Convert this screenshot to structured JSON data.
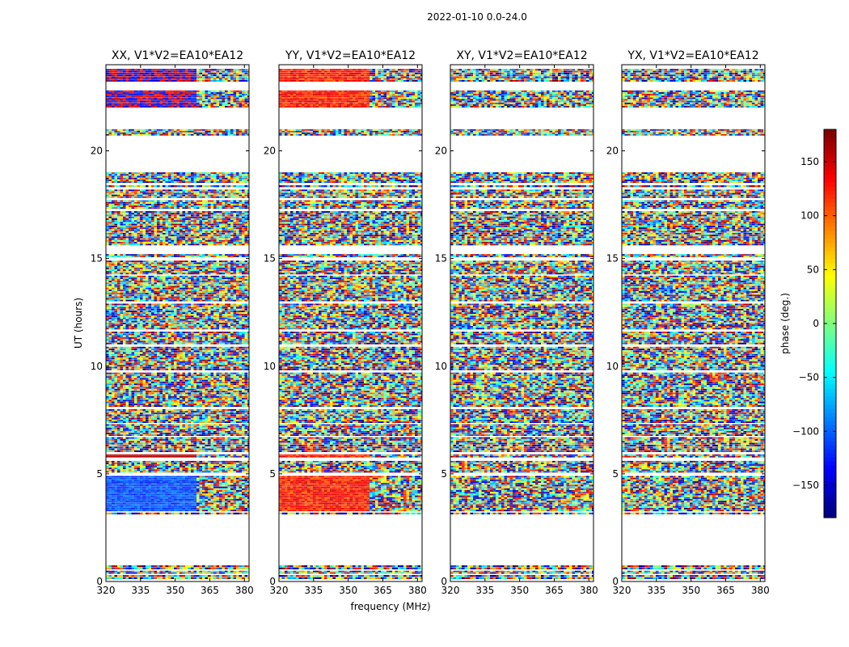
{
  "figure_title": "2022-01-10 0.0-24.0",
  "chart_data": [
    {
      "type": "heatmap",
      "title": "XX, V1*V2=EA10*EA12",
      "xlabel": "",
      "ylabel": "UT (hours)",
      "xlim": [
        320,
        382
      ],
      "ylim": [
        0,
        24
      ],
      "xticks": [
        320,
        335,
        350,
        365,
        380
      ],
      "yticks": [
        0,
        5,
        10,
        15,
        20
      ],
      "value": "phase (deg.)"
    },
    {
      "type": "heatmap",
      "title": "YY, V1*V2=EA10*EA12",
      "xlabel": "frequency (MHz)",
      "ylabel": "",
      "xlim": [
        320,
        382
      ],
      "ylim": [
        0,
        24
      ],
      "xticks": [
        320,
        335,
        350,
        365,
        380
      ],
      "yticks": [
        0,
        5,
        10,
        15,
        20
      ],
      "value": "phase (deg.)"
    },
    {
      "type": "heatmap",
      "title": "XY, V1*V2=EA10*EA12",
      "xlabel": "",
      "ylabel": "",
      "xlim": [
        320,
        382
      ],
      "ylim": [
        0,
        24
      ],
      "xticks": [
        320,
        335,
        350,
        365,
        380
      ],
      "yticks": [
        0,
        5,
        10,
        15,
        20
      ],
      "value": "phase (deg.)"
    },
    {
      "type": "heatmap",
      "title": "YX, V1*V2=EA10*EA12",
      "xlabel": "",
      "ylabel": "",
      "xlim": [
        320,
        382
      ],
      "ylim": [
        0,
        24
      ],
      "xticks": [
        320,
        335,
        350,
        365,
        380
      ],
      "yticks": [
        0,
        5,
        10,
        15,
        20
      ],
      "value": "phase (deg.)"
    }
  ],
  "colorbar": {
    "label": "phase (deg.)",
    "range": [
      -180,
      180
    ],
    "ticks": [
      -150,
      -100,
      -50,
      0,
      50,
      100,
      150
    ],
    "colormap": "jet",
    "colors": [
      "#00007f",
      "#0000ff",
      "#007fff",
      "#00ffff",
      "#7fff7f",
      "#ffff00",
      "#ff7f00",
      "#ff0000",
      "#7f0000"
    ]
  },
  "data_bands": [
    [
      0.1,
      0.3
    ],
    [
      0.35,
      0.5
    ],
    [
      0.55,
      0.75
    ],
    [
      3.1,
      3.2
    ],
    [
      3.25,
      4.9
    ],
    [
      5.05,
      5.6
    ],
    [
      5.75,
      5.9
    ],
    [
      6.0,
      6.7
    ],
    [
      6.75,
      7.3
    ],
    [
      7.35,
      8.0
    ],
    [
      8.1,
      9.7
    ],
    [
      9.8,
      10.9
    ],
    [
      11.0,
      11.6
    ],
    [
      11.7,
      12.9
    ],
    [
      13.0,
      14.2
    ],
    [
      14.25,
      14.9
    ],
    [
      15.05,
      15.2
    ],
    [
      15.6,
      17.2
    ],
    [
      17.3,
      17.7
    ],
    [
      17.8,
      18.2
    ],
    [
      18.3,
      18.4
    ],
    [
      18.5,
      19.0
    ],
    [
      20.7,
      21.0
    ],
    [
      22.0,
      22.8
    ],
    [
      23.2,
      23.8
    ]
  ]
}
